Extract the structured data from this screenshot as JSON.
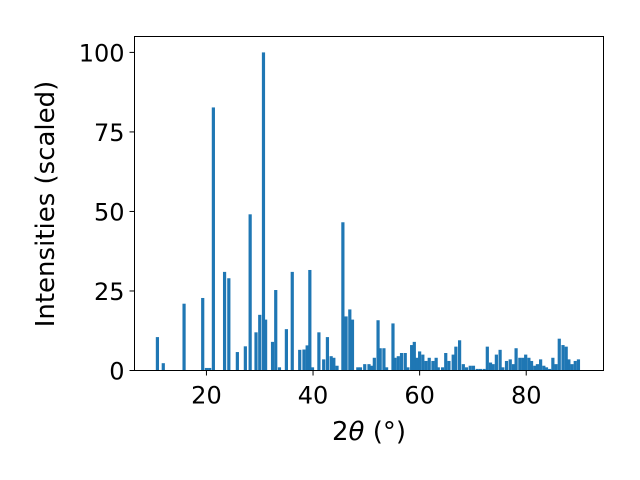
{
  "chart_data": {
    "type": "bar",
    "xlabel_prefix": "2",
    "xlabel_symbol": "θ",
    "xlabel_suffix": " (°)",
    "ylabel": "Intensities (scaled)",
    "xlim": [
      6.5,
      94.5
    ],
    "ylim": [
      0,
      105
    ],
    "xticks": [
      20,
      40,
      60,
      80
    ],
    "yticks": [
      0,
      25,
      50,
      75,
      100
    ],
    "bar_width_deg": 0.6,
    "bar_color": "#1f77b4",
    "grid": false,
    "x": [
      10.8,
      11.9,
      15.8,
      19.3,
      20.0,
      20.6,
      21.3,
      23.4,
      24.2,
      25.8,
      27.3,
      28.2,
      29.3,
      30.0,
      30.7,
      31.1,
      32.4,
      33.0,
      33.7,
      35.0,
      36.1,
      37.5,
      38.3,
      38.9,
      39.4,
      39.9,
      41.1,
      42.0,
      42.7,
      43.4,
      43.9,
      44.5,
      45.6,
      46.2,
      46.9,
      47.4,
      48.4,
      48.9,
      49.7,
      50.5,
      51.0,
      51.5,
      52.2,
      52.6,
      53.3,
      53.8,
      55.0,
      55.4,
      56.0,
      56.6,
      57.3,
      57.8,
      58.5,
      59.0,
      59.5,
      60.0,
      60.6,
      61.2,
      61.8,
      62.5,
      63.1,
      63.5,
      64.3,
      64.9,
      65.5,
      66.3,
      66.8,
      67.5,
      68.2,
      68.8,
      69.5,
      70.1,
      70.8,
      71.4,
      72.1,
      72.7,
      73.3,
      73.8,
      74.4,
      75.1,
      75.6,
      76.3,
      77.0,
      77.6,
      78.1,
      78.8,
      79.4,
      79.9,
      80.5,
      81.0,
      81.6,
      82.1,
      82.7,
      83.3,
      83.8,
      84.4,
      85.0,
      85.6,
      86.2,
      86.9,
      87.5,
      88.0,
      88.6,
      89.2,
      89.8
    ],
    "values": [
      10.5,
      2.3,
      21.0,
      22.8,
      0.8,
      0.8,
      82.7,
      31.0,
      29.0,
      5.8,
      7.6,
      49.1,
      12.0,
      17.5,
      100.0,
      16.0,
      9.0,
      25.3,
      1.0,
      13.0,
      31.0,
      6.5,
      6.6,
      7.9,
      31.6,
      1.0,
      12.0,
      3.5,
      10.5,
      4.5,
      4.0,
      1.5,
      46.6,
      17.0,
      19.2,
      16.0,
      1.0,
      1.0,
      2.0,
      2.0,
      1.5,
      4.0,
      15.8,
      7.0,
      7.0,
      1.0,
      14.8,
      4.0,
      4.5,
      5.5,
      5.5,
      1.0,
      8.0,
      9.0,
      4.0,
      6.0,
      5.0,
      3.0,
      4.0,
      3.0,
      4.0,
      1.0,
      1.0,
      5.5,
      3.0,
      5.0,
      7.5,
      9.5,
      2.0,
      1.0,
      1.5,
      1.5,
      0.5,
      0.5,
      0.5,
      7.5,
      2.5,
      2.0,
      5.0,
      6.5,
      1.0,
      3.0,
      3.5,
      2.0,
      7.0,
      4.0,
      4.0,
      5.0,
      4.0,
      3.0,
      1.5,
      2.0,
      3.5,
      1.5,
      1.0,
      0.5,
      4.0,
      2.0,
      10.0,
      8.0,
      7.5,
      3.5,
      2.0,
      3.0,
      3.5
    ]
  }
}
